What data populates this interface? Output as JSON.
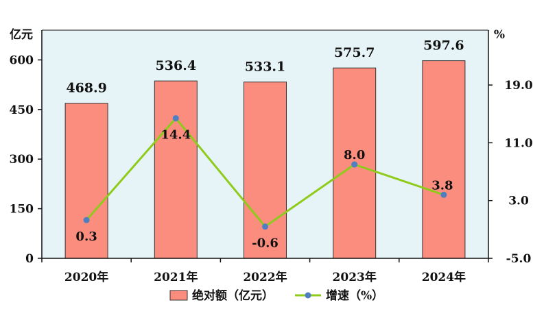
{
  "chart_data": {
    "type": "bar",
    "categories": [
      "2020年",
      "2021年",
      "2022年",
      "2023年",
      "2024年"
    ],
    "series": [
      {
        "name": "绝对额（亿元）",
        "type": "bar",
        "axis": "left",
        "values": [
          468.9,
          536.4,
          533.1,
          575.7,
          597.6
        ],
        "value_labels": [
          "468.9",
          "536.4",
          "533.1",
          "575.7",
          "597.6"
        ]
      },
      {
        "name": "增速（%）",
        "type": "line",
        "axis": "right",
        "values": [
          0.3,
          14.4,
          -0.6,
          8.0,
          3.8
        ],
        "value_labels": [
          "0.3",
          "14.4",
          "-0.6",
          "8.0",
          "3.8"
        ]
      }
    ],
    "y_left": {
      "label": "亿元",
      "ticks": [
        "0",
        "150",
        "300",
        "450",
        "600"
      ],
      "ylim": [
        0,
        690
      ]
    },
    "y_right": {
      "label": "%",
      "ticks": [
        "-5.0",
        "3.0",
        "11.0",
        "19.0"
      ],
      "ylim": [
        -5.0,
        26.6
      ]
    },
    "legend_position": "bottom-center",
    "grid": false,
    "colors": {
      "plot_bg": "#e6f4f8",
      "bar_fill": "#fa8d7e",
      "bar_stroke": "#333333",
      "line": "#8fcb1a",
      "marker": "#4f7fc0"
    }
  }
}
